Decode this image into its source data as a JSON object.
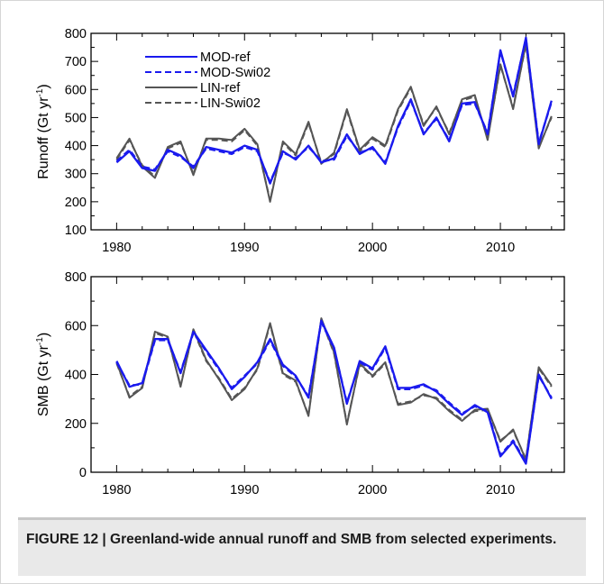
{
  "figure_caption": "FIGURE 12 | Greenland-wide annual runoff and SMB from selected experiments.",
  "colors": {
    "mod": "#1a1aee",
    "lin": "#555555"
  },
  "chart_data": [
    {
      "type": "line",
      "ylabel": "Runoff (Gt yr",
      "ylabel_sup": "-1",
      "ylabel_close": ")",
      "xlim": [
        1978,
        2015
      ],
      "ylim": [
        100,
        800
      ],
      "xticks": [
        1980,
        1990,
        2000,
        2010
      ],
      "yticks": [
        100,
        200,
        300,
        400,
        500,
        600,
        700,
        800
      ],
      "x": [
        1980,
        1981,
        1982,
        1983,
        1984,
        1985,
        1986,
        1987,
        1988,
        1989,
        1990,
        1991,
        1992,
        1993,
        1994,
        1995,
        1996,
        1997,
        1998,
        1999,
        2000,
        2001,
        2002,
        2003,
        2004,
        2005,
        2006,
        2007,
        2008,
        2009,
        2010,
        2011,
        2012,
        2013,
        2014
      ],
      "legend_position": "top-left",
      "series": [
        {
          "name": "MOD-ref",
          "style": "solid",
          "color": "#1a1aee",
          "values": [
            340,
            380,
            320,
            310,
            385,
            365,
            320,
            395,
            385,
            375,
            400,
            385,
            265,
            380,
            350,
            400,
            340,
            355,
            440,
            370,
            395,
            335,
            470,
            565,
            440,
            500,
            415,
            550,
            555,
            440,
            740,
            575,
            785,
            405,
            560
          ]
        },
        {
          "name": "MOD-Swi02",
          "style": "dashed",
          "color": "#1a1aee",
          "values": [
            345,
            385,
            325,
            315,
            380,
            360,
            325,
            390,
            380,
            370,
            395,
            380,
            270,
            375,
            355,
            395,
            345,
            350,
            435,
            375,
            390,
            340,
            465,
            560,
            445,
            495,
            420,
            545,
            550,
            445,
            735,
            580,
            780,
            410,
            555
          ]
        },
        {
          "name": "LIN-ref",
          "style": "solid",
          "color": "#555555",
          "values": [
            355,
            425,
            325,
            285,
            395,
            415,
            295,
            425,
            425,
            420,
            460,
            405,
            200,
            415,
            370,
            485,
            335,
            375,
            530,
            385,
            430,
            400,
            530,
            610,
            470,
            540,
            440,
            565,
            580,
            420,
            690,
            530,
            765,
            390,
            505
          ]
        },
        {
          "name": "LIN-Swi02",
          "style": "dashed",
          "color": "#555555",
          "values": [
            350,
            420,
            330,
            290,
            390,
            410,
            300,
            420,
            420,
            415,
            455,
            400,
            205,
            410,
            365,
            480,
            340,
            370,
            525,
            380,
            425,
            395,
            525,
            605,
            475,
            535,
            445,
            560,
            575,
            425,
            685,
            535,
            760,
            395,
            500
          ]
        }
      ]
    },
    {
      "type": "line",
      "ylabel": "SMB (Gt yr",
      "ylabel_sup": "-1",
      "ylabel_close": ")",
      "xlim": [
        1978,
        2015
      ],
      "ylim": [
        0,
        800
      ],
      "xticks": [
        1980,
        1990,
        2000,
        2010
      ],
      "yticks": [
        0,
        200,
        400,
        600,
        800
      ],
      "x": [
        1980,
        1981,
        1982,
        1983,
        1984,
        1985,
        1986,
        1987,
        1988,
        1989,
        1990,
        1991,
        1992,
        1993,
        1994,
        1995,
        1996,
        1997,
        1998,
        1999,
        2000,
        2001,
        2002,
        2003,
        2004,
        2005,
        2006,
        2007,
        2008,
        2009,
        2010,
        2011,
        2012,
        2013,
        2014
      ],
      "series": [
        {
          "name": "MOD-ref",
          "style": "solid",
          "color": "#1a1aee",
          "values": [
            455,
            350,
            365,
            545,
            545,
            405,
            575,
            500,
            425,
            340,
            390,
            450,
            545,
            440,
            395,
            305,
            620,
            510,
            280,
            455,
            425,
            515,
            345,
            345,
            360,
            330,
            280,
            235,
            275,
            245,
            65,
            125,
            35,
            400,
            300
          ]
        },
        {
          "name": "MOD-Swi02",
          "style": "dashed",
          "color": "#1a1aee",
          "values": [
            450,
            355,
            360,
            540,
            540,
            410,
            570,
            495,
            420,
            345,
            395,
            445,
            540,
            435,
            390,
            310,
            615,
            505,
            285,
            450,
            420,
            510,
            340,
            340,
            355,
            335,
            285,
            240,
            270,
            250,
            70,
            130,
            40,
            395,
            305
          ]
        },
        {
          "name": "LIN-ref",
          "style": "solid",
          "color": "#555555",
          "values": [
            450,
            305,
            345,
            575,
            555,
            350,
            585,
            460,
            380,
            295,
            340,
            425,
            610,
            405,
            375,
            230,
            630,
            490,
            195,
            445,
            395,
            450,
            275,
            285,
            320,
            300,
            250,
            210,
            255,
            260,
            125,
            175,
            50,
            430,
            355
          ]
        },
        {
          "name": "LIN-Swi02",
          "style": "dashed",
          "color": "#555555",
          "values": [
            445,
            310,
            350,
            570,
            550,
            355,
            580,
            455,
            385,
            300,
            345,
            420,
            605,
            400,
            370,
            235,
            625,
            485,
            200,
            440,
            390,
            445,
            280,
            290,
            315,
            305,
            255,
            215,
            250,
            255,
            130,
            170,
            55,
            425,
            350
          ]
        }
      ]
    }
  ]
}
